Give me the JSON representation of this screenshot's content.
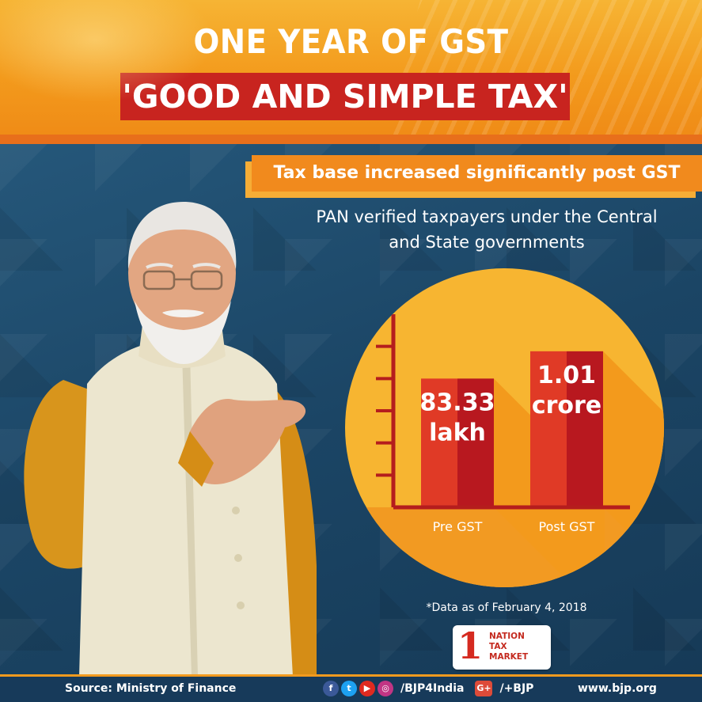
{
  "header": {
    "title_line1": "ONE YEAR OF GST",
    "title_line2": "'GOOD AND SIMPLE TAX'"
  },
  "subheading": "Tax base increased significantly post GST",
  "chart_caption_line1": "PAN verified taxpayers under the Central",
  "chart_caption_line2": "and State governments",
  "chart_data": {
    "type": "bar",
    "categories": [
      "Pre GST",
      "Post GST"
    ],
    "values": [
      0.8333,
      1.01
    ],
    "value_labels": [
      [
        "83.33",
        "lakh"
      ],
      [
        "1.01",
        "crore"
      ]
    ],
    "unit": "crore",
    "title": "",
    "xlabel": "",
    "ylabel": "",
    "ylim": [
      0,
      1.25
    ],
    "grid": false
  },
  "footnote": "*Data as of February 4, 2018",
  "logo": {
    "number": "1",
    "line1": "NATION",
    "line2": "TAX",
    "line3": "MARKET"
  },
  "footer": {
    "source": "Source: Ministry of Finance",
    "handle_primary": "/BJP4India",
    "handle_gplus": "/+BJP",
    "url": "www.bjp.org"
  },
  "icons": {
    "facebook": "facebook-icon",
    "twitter": "twitter-icon",
    "youtube": "youtube-icon",
    "instagram": "instagram-icon",
    "googleplus": "google-plus-icon"
  },
  "colors": {
    "brand_red": "#c8241f",
    "brand_orange": "#f18a1d",
    "chart_circle": "#f7b531",
    "bar_front": "#e03a26",
    "bar_side": "#b8181f"
  }
}
